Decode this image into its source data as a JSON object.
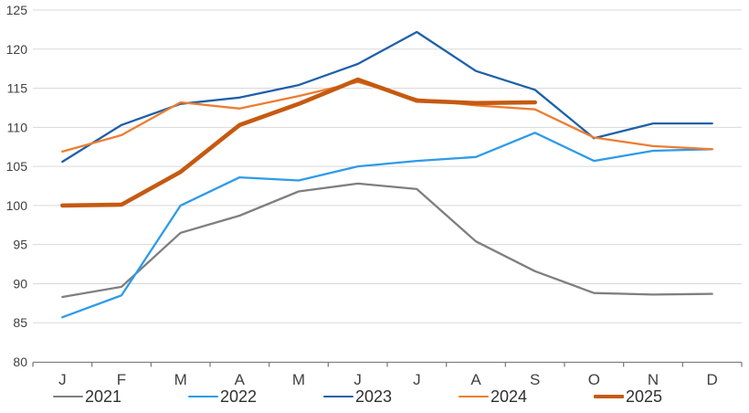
{
  "chart_data": {
    "type": "line",
    "title": "",
    "xlabel": "",
    "ylabel": "",
    "categories": [
      "J",
      "F",
      "M",
      "A",
      "M",
      "J",
      "J",
      "A",
      "S",
      "O",
      "N",
      "D"
    ],
    "y_axis": {
      "min": 80,
      "max": 125,
      "step": 5,
      "ticks": [
        "80",
        "85",
        "90",
        "95",
        "100",
        "105",
        "110",
        "115",
        "120",
        "125"
      ]
    },
    "grid": true,
    "legend_position": "bottom",
    "series": [
      {
        "name": "2021",
        "color": "#7F7F7F",
        "thickness": "normal",
        "values": [
          88.3,
          89.6,
          96.5,
          98.7,
          101.8,
          102.8,
          102.1,
          95.4,
          91.6,
          88.8,
          88.6,
          88.7
        ]
      },
      {
        "name": "2022",
        "color": "#2E9BE8",
        "thickness": "normal",
        "values": [
          85.7,
          88.5,
          100.0,
          103.6,
          103.2,
          105.0,
          105.7,
          106.2,
          109.3,
          105.7,
          107.0,
          107.2
        ]
      },
      {
        "name": "2023",
        "color": "#1F60A9",
        "thickness": "normal",
        "values": [
          105.6,
          110.3,
          113.0,
          113.8,
          115.4,
          118.1,
          122.2,
          117.2,
          114.8,
          108.6,
          110.5,
          110.5
        ]
      },
      {
        "name": "2024",
        "color": "#ED7D31",
        "thickness": "normal",
        "values": [
          106.9,
          109.0,
          113.2,
          112.4,
          114.0,
          115.8,
          113.6,
          112.8,
          112.3,
          108.7,
          107.6,
          107.2
        ]
      },
      {
        "name": "2025",
        "color": "#C55A11",
        "thickness": "thick",
        "values": [
          100.0,
          100.1,
          104.3,
          110.3,
          113.0,
          116.1,
          113.4,
          113.1,
          113.2,
          null,
          null,
          null
        ]
      }
    ]
  },
  "style": {
    "gridline_color": "#D9D9D9",
    "axis_color": "#808080",
    "label_color": "#404040",
    "background": "#FFFFFF",
    "line_width_normal": 2.3,
    "line_width_thick": 4.6
  }
}
